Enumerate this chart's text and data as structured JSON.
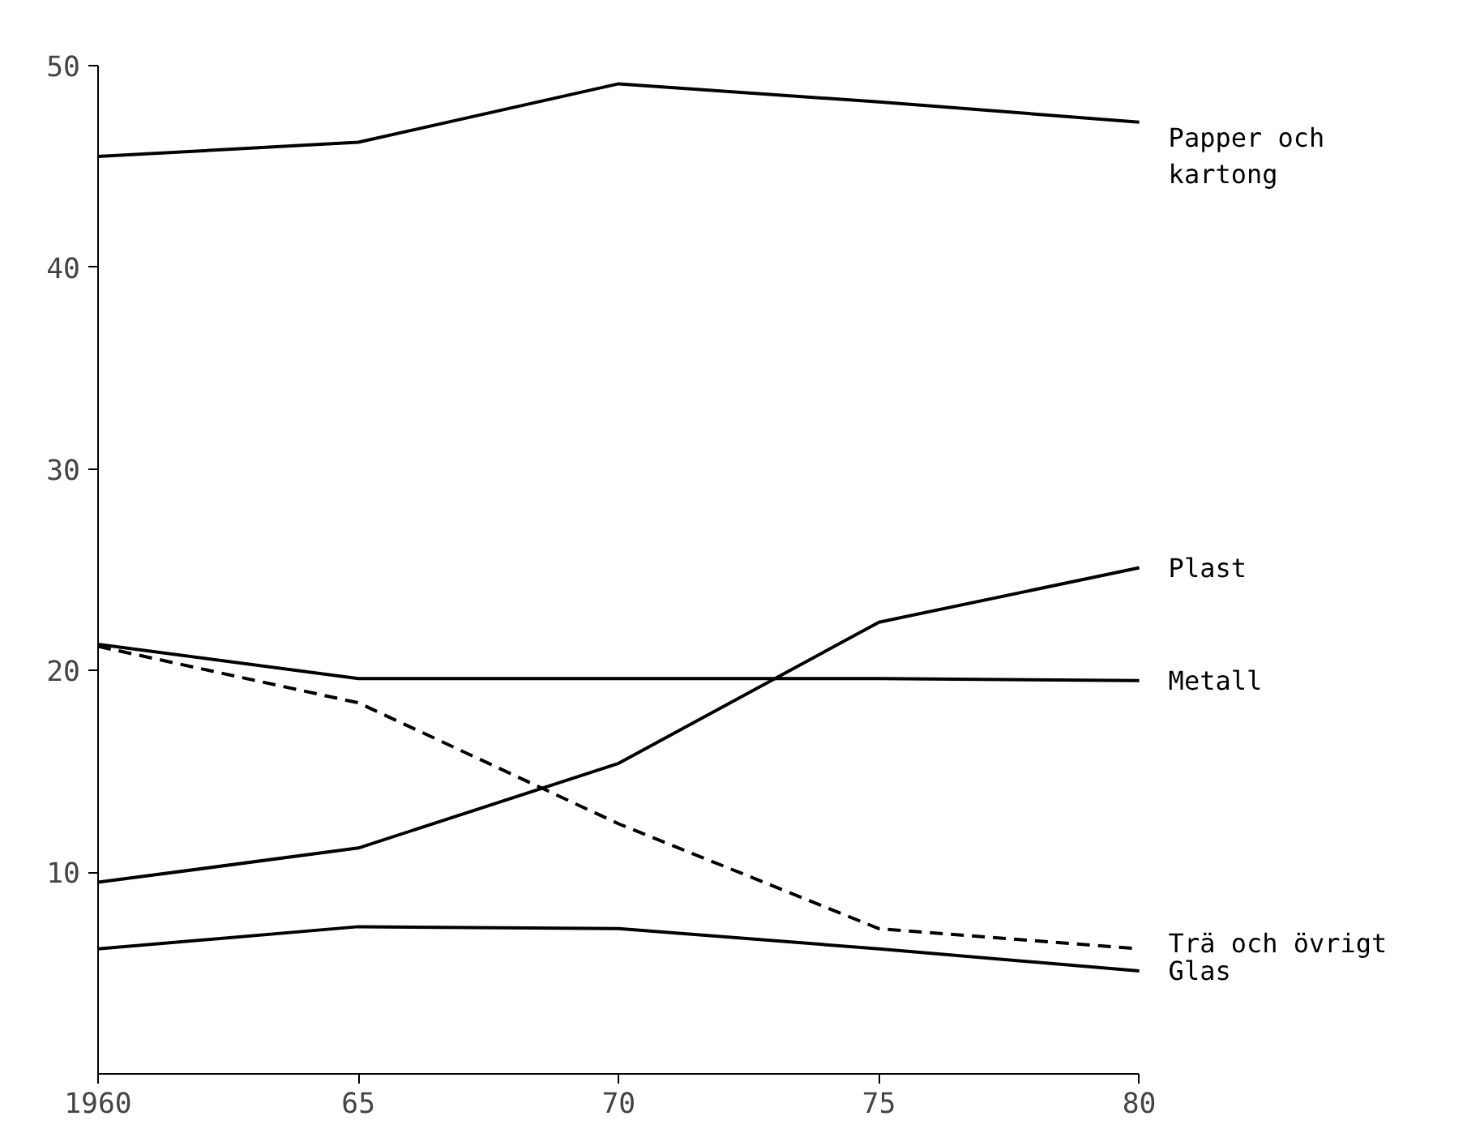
{
  "chart_data": {
    "type": "line",
    "x": [
      1960,
      1965,
      1970,
      1975,
      1980
    ],
    "xlim": [
      1960,
      1980
    ],
    "xticks": [
      1960,
      {
        "value": 1965,
        "label": "65"
      },
      {
        "value": 1970,
        "label": "70"
      },
      {
        "value": 1975,
        "label": "75"
      },
      {
        "value": 1980,
        "label": "80"
      }
    ],
    "ylim": [
      0,
      50
    ],
    "yticks": [
      10,
      20,
      30,
      40,
      50
    ],
    "grid": false,
    "legend": false,
    "marker": "none",
    "series": [
      {
        "name": "Papper och kartong",
        "color": "#000000",
        "values": [
          45.5,
          46.2,
          49.1,
          48.2,
          47.2
        ]
      },
      {
        "name": "Plast",
        "color": "#000000",
        "values": [
          9.5,
          11.2,
          15.4,
          22.4,
          25.1
        ]
      },
      {
        "name": "Metall",
        "color": "#000000",
        "values": [
          21.3,
          19.6,
          19.6,
          19.6,
          19.5
        ]
      },
      {
        "name": "Trä och övrigt",
        "color": "#000000",
        "line_style": "dashed",
        "values": [
          21.2,
          18.4,
          12.4,
          7.2,
          6.2
        ]
      },
      {
        "name": "Glas",
        "color": "#000000",
        "values": [
          6.2,
          7.3,
          7.2,
          6.2,
          5.1
        ]
      }
    ]
  }
}
